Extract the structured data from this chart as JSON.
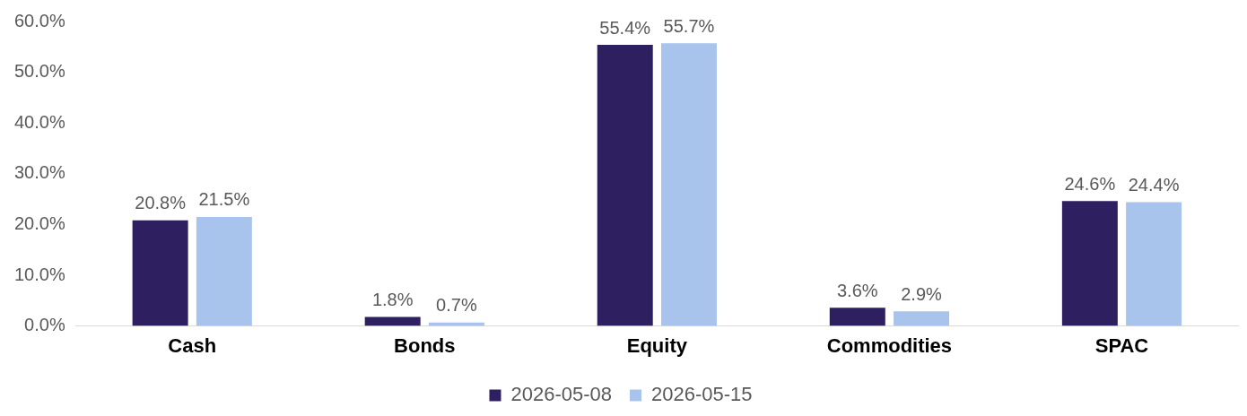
{
  "chart_data": {
    "type": "bar",
    "categories": [
      "Cash",
      "Bonds",
      "Equity",
      "Commodities",
      "SPAC"
    ],
    "series": [
      {
        "name": "2026-05-08",
        "color": "#2e2060",
        "values": [
          20.8,
          1.8,
          55.4,
          3.6,
          24.6
        ],
        "value_labels": [
          "20.8%",
          "1.8%",
          "55.4%",
          "3.6%",
          "24.6%"
        ]
      },
      {
        "name": "2026-05-15",
        "color": "#a9c4ec",
        "values": [
          21.5,
          0.7,
          55.7,
          2.9,
          24.4
        ],
        "value_labels": [
          "21.5%",
          "0.7%",
          "55.7%",
          "2.9%",
          "24.4%"
        ]
      }
    ],
    "ylim": [
      0,
      60
    ],
    "yticks": [
      {
        "value": 0,
        "label": "0.0%"
      },
      {
        "value": 10,
        "label": "10.0%"
      },
      {
        "value": 20,
        "label": "20.0%"
      },
      {
        "value": 30,
        "label": "30.0%"
      },
      {
        "value": 40,
        "label": "40.0%"
      },
      {
        "value": 50,
        "label": "50.0%"
      },
      {
        "value": 60,
        "label": "60.0%"
      }
    ],
    "grid": false,
    "legend": "bottom"
  }
}
